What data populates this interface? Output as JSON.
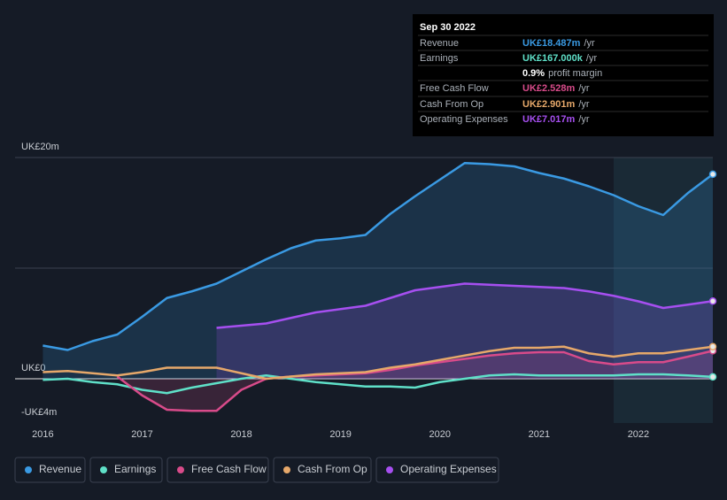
{
  "chart_data": {
    "type": "line",
    "x": [
      2016,
      2016.25,
      2016.5,
      2016.75,
      2017,
      2017.25,
      2017.5,
      2017.75,
      2018,
      2018.25,
      2018.5,
      2018.75,
      2019,
      2019.25,
      2019.5,
      2019.75,
      2020,
      2020.25,
      2020.5,
      2020.75,
      2021,
      2021.25,
      2021.5,
      2021.75,
      2022,
      2022.25,
      2022.5,
      2022.75
    ],
    "series": [
      {
        "name": "Revenue",
        "color": "#3a9ae3",
        "area": true,
        "values": [
          3.0,
          2.6,
          3.4,
          4.0,
          5.6,
          7.3,
          7.9,
          8.6,
          9.7,
          10.8,
          11.8,
          12.5,
          12.7,
          13.0,
          14.9,
          16.5,
          18.0,
          19.5,
          19.4,
          19.2,
          18.6,
          18.1,
          17.4,
          16.6,
          15.6,
          14.8,
          16.8,
          18.487
        ]
      },
      {
        "name": "Earnings",
        "color": "#5fe0c8",
        "area": false,
        "values": [
          -0.1,
          0,
          -0.3,
          -0.5,
          -1.0,
          -1.3,
          -0.8,
          -0.4,
          0,
          0.3,
          0,
          -0.3,
          -0.5,
          -0.7,
          -0.7,
          -0.8,
          -0.3,
          0,
          0.3,
          0.4,
          0.3,
          0.3,
          0.3,
          0.3,
          0.4,
          0.4,
          0.3,
          0.167
        ]
      },
      {
        "name": "Free Cash Flow",
        "color": "#d84b8a",
        "area": true,
        "values": [
          null,
          null,
          null,
          0.2,
          -1.5,
          -2.8,
          -2.9,
          -2.9,
          -1.0,
          0,
          0.2,
          0.3,
          0.4,
          0.5,
          0.8,
          1.2,
          1.5,
          1.8,
          2.1,
          2.3,
          2.4,
          2.4,
          1.6,
          1.3,
          1.5,
          1.5,
          2.0,
          2.528
        ]
      },
      {
        "name": "Cash From Op",
        "color": "#e6a86a",
        "area": false,
        "values": [
          0.6,
          0.7,
          0.5,
          0.3,
          0.6,
          1.0,
          1.0,
          1.0,
          0.5,
          0,
          0.2,
          0.4,
          0.5,
          0.6,
          1.0,
          1.3,
          1.7,
          2.1,
          2.5,
          2.8,
          2.8,
          2.9,
          2.3,
          2.0,
          2.3,
          2.3,
          2.6,
          2.901
        ]
      },
      {
        "name": "Operating Expenses",
        "color": "#a64ff0",
        "area": true,
        "values": [
          null,
          null,
          null,
          null,
          null,
          null,
          null,
          4.6,
          4.8,
          5.0,
          5.5,
          6.0,
          6.3,
          6.6,
          7.3,
          8.0,
          8.3,
          8.6,
          8.5,
          8.4,
          8.3,
          8.2,
          7.9,
          7.5,
          7.0,
          6.4,
          6.7,
          7.017
        ]
      }
    ],
    "xlim": [
      2015.72,
      2022.75
    ],
    "xticks": [
      2016,
      2017,
      2018,
      2019,
      2020,
      2021,
      2022
    ],
    "ylim": [
      -4,
      20
    ],
    "yticks": [
      {
        "value": 20,
        "label": "UK£20m"
      },
      {
        "value": 0,
        "label": "UK£0"
      },
      {
        "value": -4,
        "label": "-UK£4m"
      }
    ],
    "grid_lines": [
      20,
      10,
      0
    ],
    "tooltip": {
      "date": "Sep 30 2022",
      "rows": [
        {
          "label": "Revenue",
          "value": "UK£18.487m",
          "unit": "/yr"
        },
        {
          "label": "Earnings",
          "value": "UK£167.000k",
          "unit": "/yr"
        },
        {
          "label": "Free Cash Flow",
          "value": "UK£2.528m",
          "unit": "/yr"
        },
        {
          "label": "Cash From Op",
          "value": "UK£2.901m",
          "unit": "/yr"
        },
        {
          "label": "Operating Expenses",
          "value": "UK£7.017m",
          "unit": "/yr"
        }
      ],
      "margin": {
        "value": "0.9%",
        "label": "profit margin"
      }
    }
  }
}
